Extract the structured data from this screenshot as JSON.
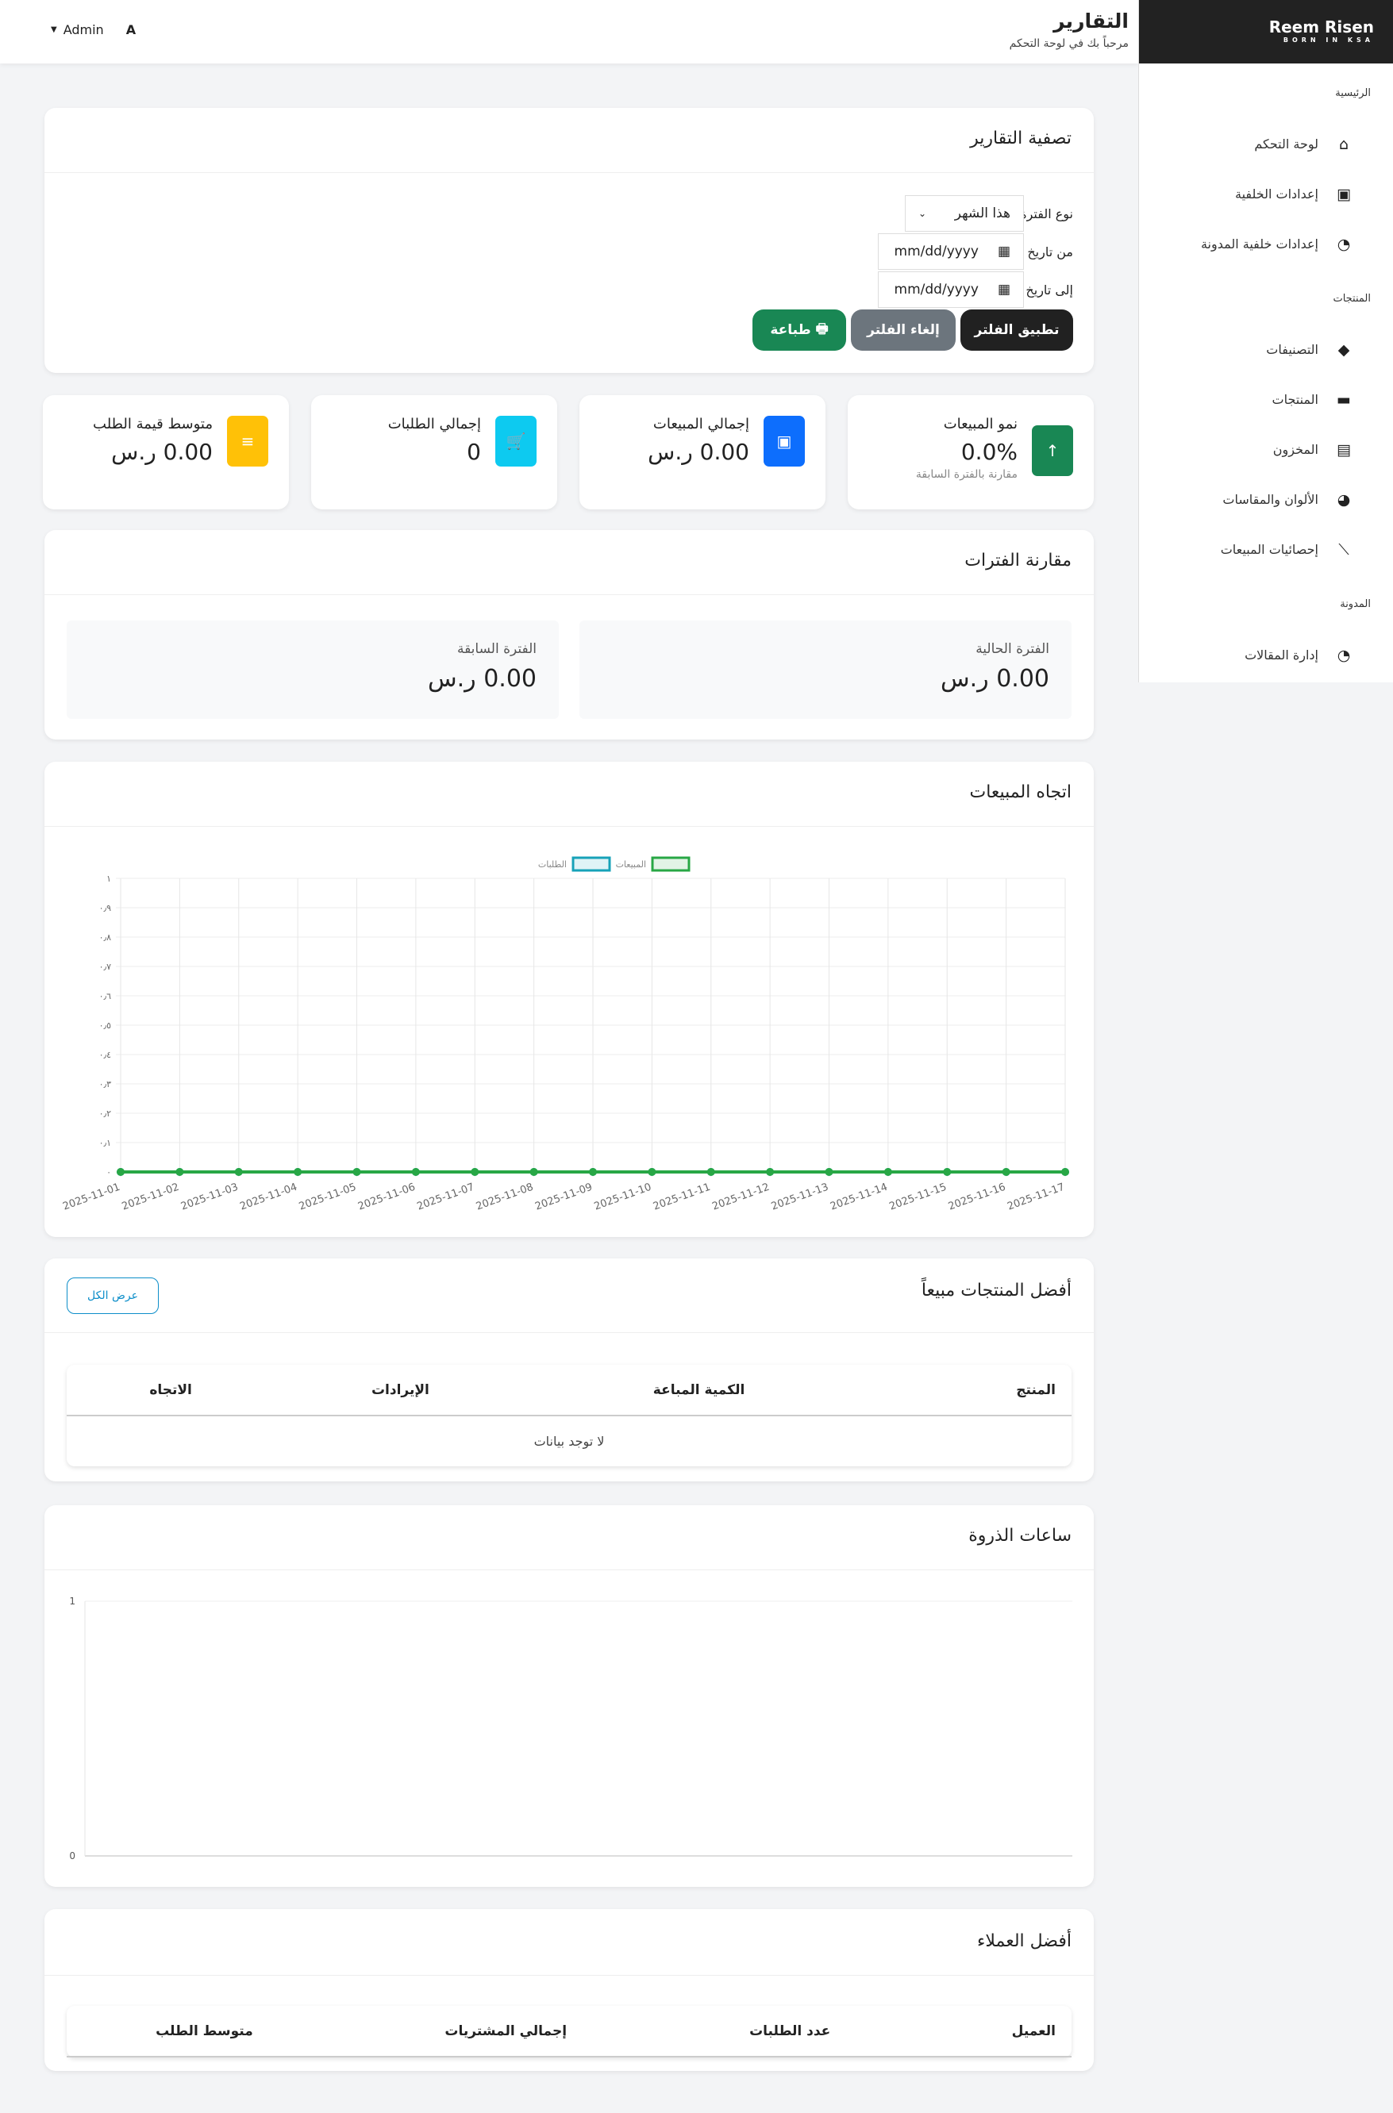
{
  "header": {
    "title": "التقارير",
    "subtitle": "مرحباً بك في لوحة التحكم",
    "user": "Admin",
    "avatar": "A"
  },
  "brand": {
    "name": "Reem Risen",
    "tagline": "BORN IN KSA"
  },
  "sidebar": {
    "sections": [
      {
        "label": "الرئيسية",
        "items": [
          {
            "label": "لوحة التحكم",
            "icon": "home-icon"
          },
          {
            "label": "إعدادات الخلفية",
            "icon": "image-icon"
          },
          {
            "label": "إعدادات خلفية المدونة",
            "icon": "blog-icon"
          }
        ]
      },
      {
        "label": "المنتجات",
        "items": [
          {
            "label": "التصنيفات",
            "icon": "tags-icon"
          },
          {
            "label": "المنتجات",
            "icon": "box-icon"
          },
          {
            "label": "المخزون",
            "icon": "warehouse-icon"
          },
          {
            "label": "الألوان والمقاسات",
            "icon": "palette-icon"
          },
          {
            "label": "إحصائيات المبيعات",
            "icon": "chart-line-icon"
          }
        ]
      },
      {
        "label": "المدونة",
        "items": [
          {
            "label": "إدارة المقالات",
            "icon": "blog-icon"
          }
        ]
      }
    ]
  },
  "filter": {
    "title": "تصفية التقارير",
    "period_label": "نوع الفترة",
    "period_value": "هذا الشهر",
    "from_label": "من تاريخ",
    "from_placeholder": "mm/dd/yyyy",
    "to_label": "إلى تاريخ",
    "to_placeholder": "mm/dd/yyyy",
    "apply": "تطبيق الفلتر",
    "cancel": "إلغاء الفلتر",
    "print": "طباعة"
  },
  "stats": [
    {
      "title": "نمو المبيعات",
      "value": "0.0%",
      "note": "مقارنة بالفترة السابقة",
      "color": "#198754",
      "icon": "arrow-up-icon"
    },
    {
      "title": "إجمالي المبيعات",
      "value": "0.00 ر.س",
      "color": "#0d6efd",
      "icon": "money-icon"
    },
    {
      "title": "إجمالي الطلبات",
      "value": "0",
      "color": "#0dcaf0",
      "icon": "cart-icon"
    },
    {
      "title": "متوسط قيمة الطلب",
      "value": "0.00 ر.س",
      "color": "#ffc107",
      "icon": "receipt-icon"
    }
  ],
  "comparison": {
    "title": "مقارنة الفترات",
    "current_label": "الفترة الحالية",
    "current_value": "0.00 ر.س",
    "previous_label": "الفترة السابقة",
    "previous_value": "0.00 ر.س"
  },
  "trend": {
    "title": "اتجاه المبيعات"
  },
  "top_products": {
    "title": "أفضل المنتجات مبيعاً",
    "view_all": "عرض الكل",
    "columns": [
      "المنتج",
      "الكمية المباعة",
      "الإيرادات",
      "الاتجاه"
    ],
    "empty": "لا توجد بيانات"
  },
  "peak": {
    "title": "ساعات الذروة"
  },
  "top_customers": {
    "title": "أفضل العملاء",
    "columns": [
      "العميل",
      "عدد الطلبات",
      "إجمالي المشتريات",
      "متوسط الطلب"
    ]
  },
  "chart_data": [
    {
      "type": "line",
      "x": [
        "2025-11-01",
        "2025-11-02",
        "2025-11-03",
        "2025-11-04",
        "2025-11-05",
        "2025-11-06",
        "2025-11-07",
        "2025-11-08",
        "2025-11-09",
        "2025-11-10",
        "2025-11-11",
        "2025-11-12",
        "2025-11-13",
        "2025-11-14",
        "2025-11-15",
        "2025-11-16",
        "2025-11-17"
      ],
      "series": [
        {
          "name": "المبيعات",
          "color": "#28a745",
          "values": [
            0,
            0,
            0,
            0,
            0,
            0,
            0,
            0,
            0,
            0,
            0,
            0,
            0,
            0,
            0,
            0,
            0
          ]
        },
        {
          "name": "الطلبات",
          "color": "#17a2b8",
          "values": [
            0,
            0,
            0,
            0,
            0,
            0,
            0,
            0,
            0,
            0,
            0,
            0,
            0,
            0,
            0,
            0,
            0
          ]
        }
      ],
      "ylim": [
        0,
        1
      ],
      "yticks": [
        "٠",
        "٠٫١",
        "٠٫٢",
        "٠٫٣",
        "٠٫٤",
        "٠٫٥",
        "٠٫٦",
        "٠٫٧",
        "٠٫٨",
        "٠٫٩",
        "١"
      ],
      "grid": true,
      "legend": "top"
    },
    {
      "type": "bar",
      "x": [],
      "series": [],
      "ylim": [
        0,
        1
      ],
      "yticks": [
        "0",
        "1"
      ],
      "grid": true
    }
  ]
}
